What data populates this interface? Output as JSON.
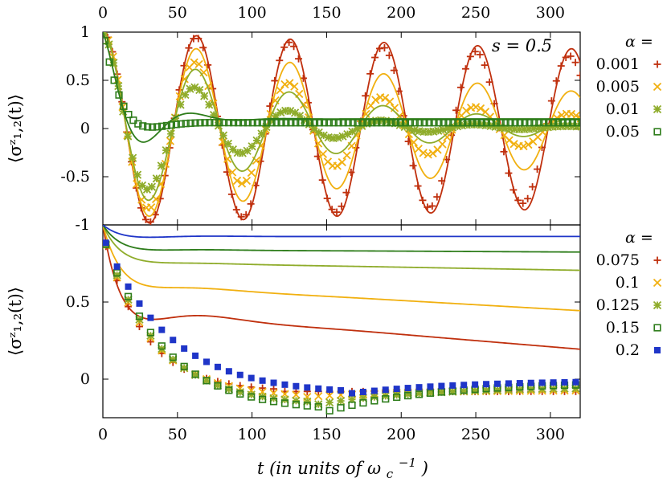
{
  "chart_data": [
    {
      "type": "line",
      "panel": "top",
      "annotation": "s = 0.5",
      "ylabel": "⟨σᶻ₁,₂(t)⟩",
      "xlim": [
        0,
        320
      ],
      "ylim": [
        -1,
        1
      ],
      "xticks": [
        "0",
        "50",
        "100",
        "150",
        "200",
        "250",
        "300"
      ],
      "yticks": [
        "1",
        "0.5",
        "0",
        "-0.5",
        "-1"
      ],
      "legend_title": "α =",
      "legend_placement": "right",
      "grid": false,
      "series": [
        {
          "name": "0.001",
          "color": "#c0300e",
          "marker": "plus",
          "decay": 0.0006,
          "offset": 0.0,
          "omega": 0.1,
          "points_decay": 0.0009,
          "points_omega": 0.1005
        },
        {
          "name": "0.005",
          "color": "#f1b010",
          "marker": "cross",
          "decay": 0.003,
          "offset": 0.0,
          "omega": 0.1,
          "points_decay": 0.006,
          "points_omega": 0.1005
        },
        {
          "name": "0.01",
          "color": "#8fac2b",
          "marker": "star",
          "decay": 0.008,
          "offset": 0.02,
          "omega": 0.1,
          "points_decay": 0.014,
          "points_omega": 0.1005
        },
        {
          "name": "0.05",
          "color": "#2e7d1b",
          "marker": "square-open",
          "decay": 0.045,
          "offset": 0.1,
          "omega": 0.1,
          "points_decay": 0.08,
          "points_omega": 0.07
        }
      ]
    },
    {
      "type": "line",
      "panel": "bottom",
      "ylabel": "⟨σᶻ₁,₂(t)⟩",
      "xlabel": "t (in units of ω_c^-1)",
      "xlim": [
        0,
        320
      ],
      "ylim": [
        -0.25,
        1
      ],
      "xticks": [
        "0",
        "50",
        "100",
        "150",
        "200",
        "250",
        "300"
      ],
      "yticks": [
        "1",
        "0.5",
        "0"
      ],
      "legend_title": "α =",
      "legend_placement": "right",
      "grid": false,
      "series": [
        {
          "name": "0.075",
          "color": "#c0300e",
          "marker": "plus",
          "plateau": 0.45,
          "drift": 0.0008
        },
        {
          "name": "0.1",
          "color": "#f1b010",
          "marker": "cross",
          "plateau": 0.62,
          "drift": 0.00055
        },
        {
          "name": "0.125",
          "color": "#8fac2b",
          "marker": "star",
          "plateau": 0.76,
          "drift": 0.00017
        },
        {
          "name": "0.15",
          "color": "#2e7d1b",
          "marker": "square-open",
          "plateau": 0.84,
          "drift": 5e-05
        },
        {
          "name": "0.2",
          "color": "#1f35c8",
          "marker": "square-filled",
          "plateau": 0.925,
          "drift": 0.0
        }
      ]
    }
  ],
  "labels": {
    "annotation": "s = 0.5",
    "ylabel_top": "⟨σᶻ₁,₂(t)⟩",
    "ylabel_bottom": "⟨σᶻ₁,₂(t)⟩",
    "xlabel": "t (in units of ω",
    "legend_title_top": "α =",
    "legend_title_bottom": "α ="
  }
}
